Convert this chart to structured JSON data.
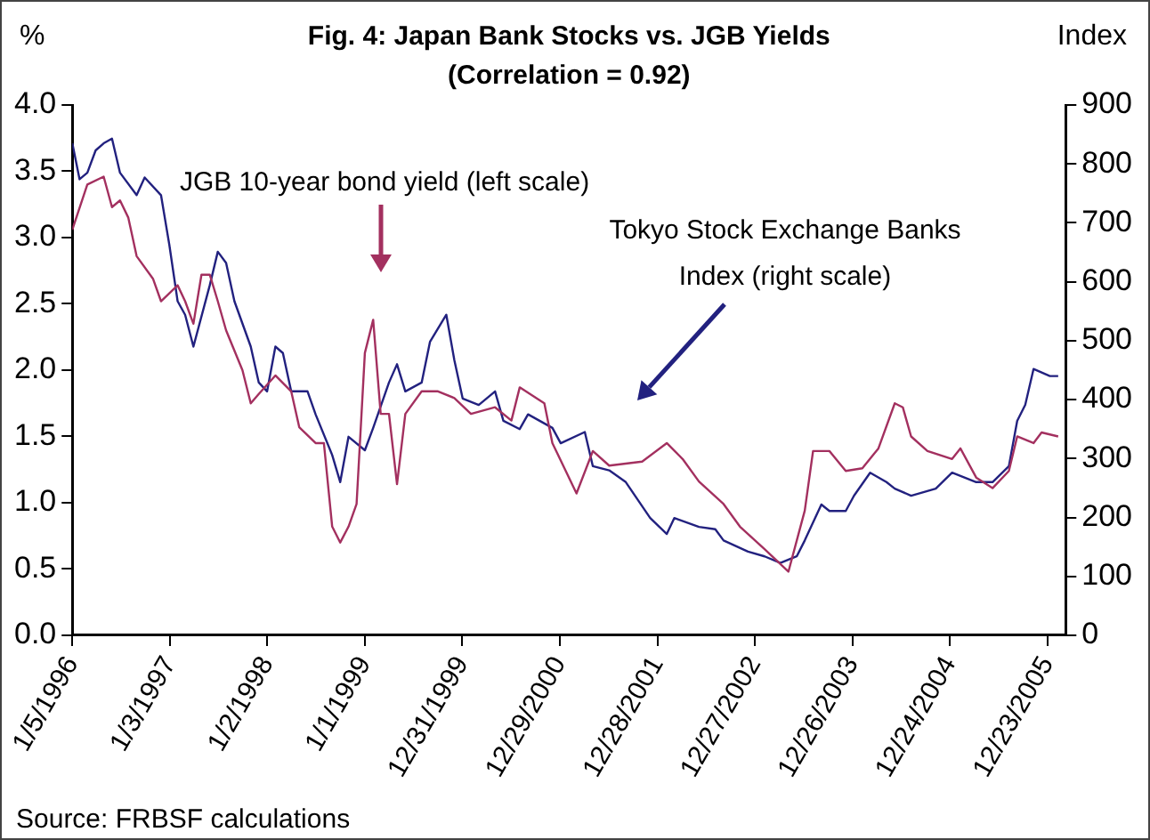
{
  "chart_data": {
    "type": "line",
    "title": "Fig. 4: Japan Bank Stocks vs. JGB Yields",
    "subtitle": "(Correlation = 0.92)",
    "ylabel": "%",
    "y2label": "Index",
    "xlim": [
      "1996-01-05",
      "2006-03-01"
    ],
    "xticks": [
      {
        "value": "1996-01-05",
        "label": "1/5/1996"
      },
      {
        "value": "1997-01-03",
        "label": "1/3/1997"
      },
      {
        "value": "1998-01-02",
        "label": "1/2/1998"
      },
      {
        "value": "1999-01-01",
        "label": "1/1/1999"
      },
      {
        "value": "1999-12-31",
        "label": "12/31/1999"
      },
      {
        "value": "2000-12-29",
        "label": "12/29/2000"
      },
      {
        "value": "2001-12-28",
        "label": "12/28/2001"
      },
      {
        "value": "2002-12-27",
        "label": "12/27/2002"
      },
      {
        "value": "2003-12-26",
        "label": "12/26/2003"
      },
      {
        "value": "2004-12-24",
        "label": "12/24/2004"
      },
      {
        "value": "2005-12-23",
        "label": "12/23/2005"
      }
    ],
    "ylim": [
      0,
      4
    ],
    "yticks": [
      {
        "value": 0,
        "label": "0.0"
      },
      {
        "value": 0.5,
        "label": "0.5"
      },
      {
        "value": 1,
        "label": "1.0"
      },
      {
        "value": 1.5,
        "label": "1.5"
      },
      {
        "value": 2,
        "label": "2.0"
      },
      {
        "value": 2.5,
        "label": "2.5"
      },
      {
        "value": 3,
        "label": "3.0"
      },
      {
        "value": 3.5,
        "label": "3.5"
      },
      {
        "value": 4,
        "label": "4.0"
      }
    ],
    "y2lim": [
      0,
      900
    ],
    "y2ticks": [
      0,
      100,
      200,
      300,
      400,
      500,
      600,
      700,
      800,
      900
    ],
    "grid": false,
    "legend": false,
    "marker": "none",
    "line_style": "solid",
    "series": [
      {
        "color": "#a3305f",
        "x": [
          "1996-01-05",
          "1996-03",
          "1996-05",
          "1996-06",
          "1996-07",
          "1996-08",
          "1996-09",
          "1996-11",
          "1996-12",
          "1997-02",
          "1997-03",
          "1997-04",
          "1997-05",
          "1997-06",
          "1997-07",
          "1997-08",
          "1997-10",
          "1997-11",
          "1997-12",
          "1998-02",
          "1998-04",
          "1998-05",
          "1998-07",
          "1998-08",
          "1998-09",
          "1998-10",
          "1998-11",
          "1998-12",
          "1999-01",
          "1999-02",
          "1999-03",
          "1999-04",
          "1999-05",
          "1999-06",
          "1999-08",
          "1999-10",
          "1999-12",
          "2000-02",
          "2000-05",
          "2000-07",
          "2000-08",
          "2000-11",
          "2000-12",
          "2001-03",
          "2001-05",
          "2001-07",
          "2001-11",
          "2002-02",
          "2002-04",
          "2002-06",
          "2002-09",
          "2002-11",
          "2003-02",
          "2003-05",
          "2003-07",
          "2003-08",
          "2003-10",
          "2003-12",
          "2004-02",
          "2004-04",
          "2004-06",
          "2004-07",
          "2004-08",
          "2004-10",
          "2005-01",
          "2005-02",
          "2005-04",
          "2005-06",
          "2005-08",
          "2005-09",
          "2005-11",
          "2005-12",
          "2006-02"
        ],
        "values": [
          3.06,
          3.4,
          3.46,
          3.23,
          3.28,
          3.15,
          2.86,
          2.69,
          2.52,
          2.64,
          2.52,
          2.35,
          2.72,
          2.72,
          2.52,
          2.3,
          2.0,
          1.75,
          1.82,
          1.96,
          1.84,
          1.57,
          1.45,
          1.45,
          0.82,
          0.7,
          0.82,
          0.99,
          2.13,
          2.38,
          1.67,
          1.67,
          1.14,
          1.67,
          1.84,
          1.84,
          1.79,
          1.67,
          1.72,
          1.62,
          1.87,
          1.75,
          1.45,
          1.07,
          1.39,
          1.28,
          1.31,
          1.45,
          1.33,
          1.16,
          0.99,
          0.82,
          0.65,
          0.48,
          0.94,
          1.39,
          1.39,
          1.24,
          1.26,
          1.41,
          1.75,
          1.72,
          1.5,
          1.39,
          1.33,
          1.41,
          1.19,
          1.11,
          1.24,
          1.5,
          1.45,
          1.53,
          1.5
        ]
      },
      {
        "color": "#22217f",
        "axis": "y2",
        "x": [
          "1996-01-05",
          "1996-02",
          "1996-03",
          "1996-04",
          "1996-05",
          "1996-06",
          "1996-07",
          "1996-09",
          "1996-10",
          "1996-12",
          "1997-01",
          "1997-02",
          "1997-03",
          "1997-04",
          "1997-06",
          "1997-07",
          "1997-08",
          "1997-09",
          "1997-11",
          "1997-12",
          "1998-01",
          "1998-02",
          "1998-03",
          "1998-04",
          "1998-06",
          "1998-07",
          "1998-09",
          "1998-10",
          "1998-11",
          "1999-01",
          "1999-02",
          "1999-04",
          "1999-05",
          "1999-06",
          "1999-08",
          "1999-09",
          "1999-11",
          "1999-12",
          "2000-01",
          "2000-03",
          "2000-05",
          "2000-06",
          "2000-08",
          "2000-09",
          "2000-12",
          "2001-01",
          "2001-04",
          "2001-05",
          "2001-07",
          "2001-09",
          "2001-12",
          "2002-02",
          "2002-03",
          "2002-06",
          "2002-08",
          "2002-09",
          "2002-12",
          "2003-02",
          "2003-04",
          "2003-06",
          "2003-07",
          "2003-09",
          "2003-10",
          "2003-12",
          "2004-01",
          "2004-03",
          "2004-05",
          "2004-06",
          "2004-08",
          "2004-11",
          "2005-01",
          "2005-04",
          "2005-06",
          "2005-08",
          "2005-09",
          "2005-10",
          "2005-11",
          "2006-01",
          "2006-02"
        ],
        "values": [
          835,
          774,
          785,
          823,
          835,
          843,
          785,
          747,
          777,
          747,
          663,
          567,
          544,
          490,
          594,
          651,
          632,
          567,
          490,
          429,
          414,
          490,
          479,
          414,
          414,
          375,
          306,
          260,
          337,
          314,
          352,
          429,
          460,
          414,
          429,
          498,
          544,
          467,
          402,
          391,
          414,
          364,
          350,
          375,
          352,
          326,
          345,
          287,
          280,
          260,
          199,
          172,
          199,
          184,
          180,
          161,
          142,
          134,
          123,
          134,
          161,
          222,
          211,
          211,
          237,
          276,
          260,
          249,
          237,
          249,
          276,
          260,
          260,
          287,
          364,
          391,
          452,
          440,
          440
        ]
      }
    ],
    "annotations": [
      "JGB 10-year bond yield (left scale)",
      "Tokyo Stock Exchange Banks Index (right scale)",
      "Source: FRBSF calculations"
    ]
  }
}
